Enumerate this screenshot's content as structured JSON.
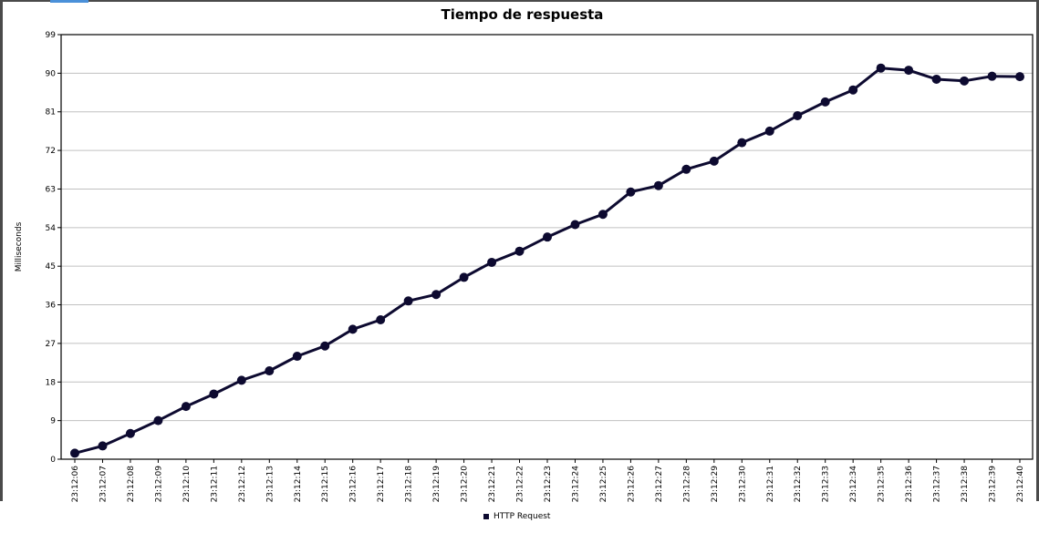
{
  "chart_data": {
    "type": "line",
    "title": "Tiempo de respuesta",
    "xlabel": "",
    "ylabel": "Milliseconds",
    "ylim": [
      0,
      99
    ],
    "yticks": [
      "0",
      "9",
      "18",
      "27",
      "36",
      "45",
      "54",
      "63",
      "72",
      "81",
      "90",
      "99"
    ],
    "grid": true,
    "legend_position": "bottom-center",
    "x": [
      "23:12:06",
      "23:12:07",
      "23:12:08",
      "23:12:09",
      "23:12:10",
      "23:12:11",
      "23:12:12",
      "23:12:13",
      "23:12:14",
      "23:12:15",
      "23:12:16",
      "23:12:17",
      "23:12:18",
      "23:12:19",
      "23:12:20",
      "23:12:21",
      "23:12:22",
      "23:12:23",
      "23:12:24",
      "23:12:25",
      "23:12:26",
      "23:12:27",
      "23:12:28",
      "23:12:29",
      "23:12:30",
      "23:12:31",
      "23:12:32",
      "23:12:33",
      "23:12:34",
      "23:12:35",
      "23:12:36",
      "23:12:37",
      "23:12:38",
      "23:12:39",
      "23:12:40"
    ],
    "series": [
      {
        "name": "HTTP Request",
        "color": "#0d0a30",
        "values": [
          1.4,
          3.1,
          6.0,
          9.0,
          12.3,
          15.2,
          18.4,
          20.6,
          24.0,
          26.4,
          30.3,
          32.5,
          36.9,
          38.4,
          42.4,
          45.9,
          48.5,
          51.8,
          54.7,
          57.1,
          62.3,
          63.8,
          67.6,
          69.5,
          73.8,
          76.5,
          80.1,
          83.3,
          86.1,
          91.2,
          90.7,
          88.6,
          88.2,
          89.3,
          89.2
        ]
      }
    ]
  },
  "colors": {
    "line": "#0d0a30",
    "grid": "#c0c0c0",
    "frame": "#4a4a4a"
  }
}
